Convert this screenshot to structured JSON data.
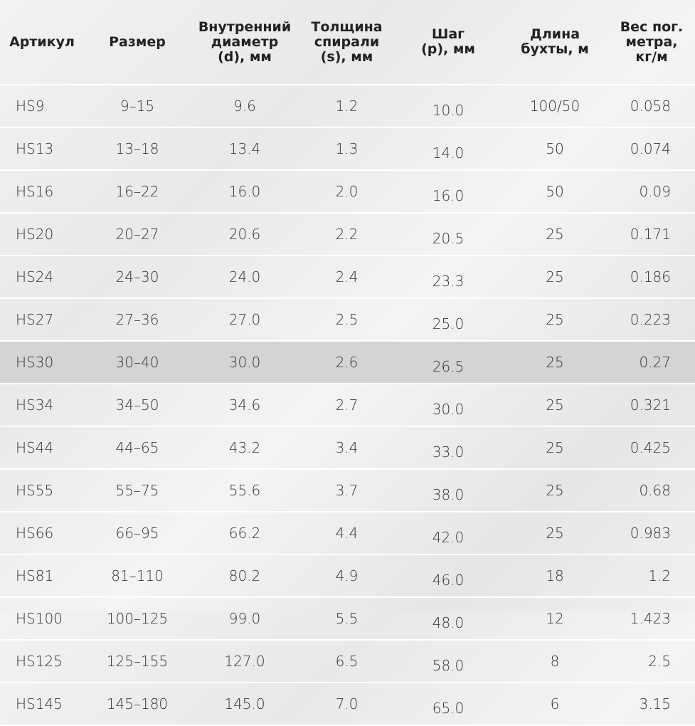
{
  "table": {
    "header": [
      [
        "Артикул"
      ],
      [
        "Размер"
      ],
      [
        "Внутренний",
        "диаметр",
        "(d), мм"
      ],
      [
        "Толщина",
        "спирали",
        "(s), мм"
      ],
      [
        "Шаг",
        "(p), мм"
      ],
      [
        "Длина",
        "бухты, м"
      ],
      [
        "Вес пог.",
        "метра,",
        "кг/м"
      ]
    ],
    "rows": [
      [
        "HS9",
        "9–15",
        "9.6",
        "1.2",
        "10.0",
        "100/50",
        "0.058"
      ],
      [
        "HS13",
        "13–18",
        "13.4",
        "1.3",
        "14.0",
        "50",
        "0.074"
      ],
      [
        "HS16",
        "16–22",
        "16.0",
        "2.0",
        "16.0",
        "50",
        "0.09"
      ],
      [
        "HS20",
        "20–27",
        "20.6",
        "2.2",
        "20.5",
        "25",
        "0.171"
      ],
      [
        "HS24",
        "24–30",
        "24.0",
        "2.4",
        "23.3",
        "25",
        "0.186"
      ],
      [
        "HS27",
        "27–36",
        "27.0",
        "2.5",
        "25.0",
        "25",
        "0.223"
      ],
      [
        "HS30",
        "30–40",
        "30.0",
        "2.6",
        "26.5",
        "25",
        "0.27"
      ],
      [
        "HS34",
        "34–50",
        "34.6",
        "2.7",
        "30.0",
        "25",
        "0.321"
      ],
      [
        "HS44",
        "44–65",
        "43.2",
        "3.4",
        "33.0",
        "25",
        "0.425"
      ],
      [
        "HS55",
        "55–75",
        "55.6",
        "3.7",
        "38.0",
        "25",
        "0.68"
      ],
      [
        "HS66",
        "66–95",
        "66.2",
        "4.4",
        "42.0",
        "25",
        "0.983"
      ],
      [
        "HS81",
        "81–110",
        "80.2",
        "4.9",
        "46.0",
        "18",
        "1.2"
      ],
      [
        "HS100",
        "100–125",
        "99.0",
        "5.5",
        "48.0",
        "12",
        "1.423"
      ],
      [
        "HS125",
        "125–155",
        "127.0",
        "6.5",
        "58.0",
        "8",
        "2.5"
      ],
      [
        "HS145",
        "145–180",
        "145.0",
        "7.0",
        "65.0",
        "6",
        "3.15"
      ]
    ]
  }
}
